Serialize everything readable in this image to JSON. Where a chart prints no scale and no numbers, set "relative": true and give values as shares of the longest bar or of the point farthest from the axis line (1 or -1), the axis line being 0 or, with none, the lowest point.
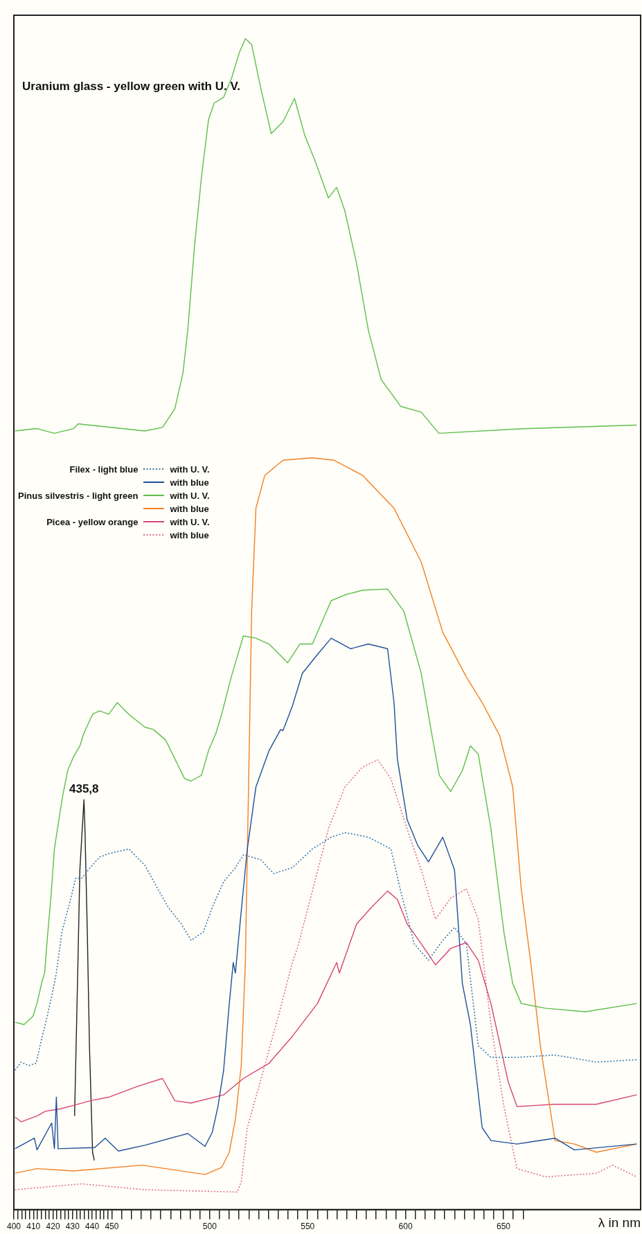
{
  "chart_data": {
    "type": "line",
    "relative": true,
    "xlabel": "λ in nm",
    "xlim": [
      400,
      720
    ],
    "xticks": [
      400,
      {
        "value": 402,
        "label": null
      },
      {
        "value": 404,
        "label": null
      },
      {
        "value": 406,
        "label": null
      },
      {
        "value": 408,
        "label": null
      },
      410,
      {
        "value": 412,
        "label": null
      },
      {
        "value": 414,
        "label": null
      },
      {
        "value": 416,
        "label": null
      },
      {
        "value": 418,
        "label": null
      },
      420,
      {
        "value": 422,
        "label": null
      },
      {
        "value": 424,
        "label": null
      },
      {
        "value": 426,
        "label": null
      },
      {
        "value": 428,
        "label": null
      },
      430,
      {
        "value": 432,
        "label": null
      },
      {
        "value": 434,
        "label": null
      },
      {
        "value": 436,
        "label": null
      },
      {
        "value": 438,
        "label": null
      },
      440,
      {
        "value": 442,
        "label": null
      },
      {
        "value": 444,
        "label": null
      },
      {
        "value": 446,
        "label": null
      },
      {
        "value": 448,
        "label": null
      },
      450,
      {
        "value": 455,
        "label": null
      },
      {
        "value": 460,
        "label": null
      },
      {
        "value": 465,
        "label": null
      },
      {
        "value": 470,
        "label": null
      },
      {
        "value": 475,
        "label": null
      },
      {
        "value": 480,
        "label": null
      },
      {
        "value": 485,
        "label": null
      },
      {
        "value": 490,
        "label": null
      },
      {
        "value": 495,
        "label": null
      },
      500,
      {
        "value": 505,
        "label": null
      },
      {
        "value": 510,
        "label": null
      },
      {
        "value": 515,
        "label": null
      },
      {
        "value": 520,
        "label": null
      },
      {
        "value": 525,
        "label": null
      },
      {
        "value": 530,
        "label": null
      },
      {
        "value": 535,
        "label": null
      },
      {
        "value": 540,
        "label": null
      },
      {
        "value": 545,
        "label": null
      },
      550,
      {
        "value": 555,
        "label": null
      },
      {
        "value": 560,
        "label": null
      },
      {
        "value": 565,
        "label": null
      },
      {
        "value": 570,
        "label": null
      },
      {
        "value": 575,
        "label": null
      },
      {
        "value": 580,
        "label": null
      },
      {
        "value": 585,
        "label": null
      },
      {
        "value": 590,
        "label": null
      },
      {
        "value": 595,
        "label": null
      },
      600,
      {
        "value": 605,
        "label": null
      },
      {
        "value": 610,
        "label": null
      },
      {
        "value": 615,
        "label": null
      },
      {
        "value": 620,
        "label": null
      },
      {
        "value": 625,
        "label": null
      },
      {
        "value": 630,
        "label": null
      },
      {
        "value": 635,
        "label": null
      },
      {
        "value": 640,
        "label": null
      },
      {
        "value": 645,
        "label": null
      },
      650,
      {
        "value": 655,
        "label": null
      },
      {
        "value": 660,
        "label": null
      }
    ],
    "legend": "top left",
    "marker": "none",
    "annotations": [
      "Uranium glass - yellow green with U. V.",
      "Filex - light blue",
      "Pinus silvestris - light green",
      "Picea - yellow orange",
      {
        "text": "435,8",
        "x": 435.8,
        "y": 0.35
      }
    ],
    "series": [
      {
        "color": "#5cbf4a",
        "line_style": "solid",
        "x": [
          400.6,
          411.8,
          420.7,
          430.5,
          432.8,
          466.9,
          475.9,
          482.2,
          486.3,
          488.8,
          492.2,
          495.8,
          499.4,
          502.3,
          507.1,
          511.1,
          515.1,
          518.2,
          521.4,
          525.9,
          531.4,
          537.4,
          543.3,
          548.6,
          553.7,
          560.6,
          564.8,
          569,
          575,
          581,
          587.5,
          597.5,
          608,
          617,
          661.4,
          718
        ],
        "values": [
          0.665,
          0.667,
          0.663,
          0.667,
          0.671,
          0.665,
          0.668,
          0.684,
          0.714,
          0.751,
          0.822,
          0.882,
          0.931,
          0.945,
          0.95,
          0.966,
          0.988,
          1.0,
          0.995,
          0.959,
          0.919,
          0.929,
          0.949,
          0.917,
          0.896,
          0.864,
          0.873,
          0.853,
          0.808,
          0.751,
          0.709,
          0.686,
          0.681,
          0.663,
          0.667,
          0.67
        ]
      },
      {
        "name": "with U. V.",
        "color": "#3a78b5",
        "line_style": "dotted",
        "x": [
          400.6,
          403.7,
          407.6,
          411.4,
          413.5,
          417,
          419.8,
          421.7,
          424.5,
          428.5,
          431.6,
          434.7,
          438,
          443.7,
          448.4,
          458.7,
          466.9,
          472.8,
          478.9,
          485.5,
          490.5,
          496.7,
          501.3,
          507.1,
          513.1,
          517.2,
          525.9,
          532.7,
          542.2,
          552.4,
          562,
          569,
          581,
          592.5,
          597.5,
          604.4,
          611.7,
          619,
          625,
          631,
          637.1,
          643.6,
          656.9,
          676.3,
          697.4,
          718
        ],
        "values": [
          0.119,
          0.126,
          0.123,
          0.125,
          0.141,
          0.165,
          0.186,
          0.202,
          0.237,
          0.262,
          0.283,
          0.283,
          0.29,
          0.301,
          0.304,
          0.308,
          0.294,
          0.276,
          0.258,
          0.244,
          0.23,
          0.237,
          0.258,
          0.28,
          0.292,
          0.303,
          0.299,
          0.287,
          0.292,
          0.308,
          0.318,
          0.322,
          0.318,
          0.308,
          0.272,
          0.227,
          0.213,
          0.23,
          0.241,
          0.227,
          0.14,
          0.13,
          0.13,
          0.132,
          0.126,
          0.128
        ]
      },
      {
        "name": "with blue",
        "color": "#1f4f9a",
        "line_style": "solid",
        "x": [
          400.6,
          410.5,
          411.8,
          419.3,
          420.7,
          421.7,
          422.6,
          441.3,
          446.6,
          453.4,
          466.9,
          488.8,
          497.6,
          501.3,
          504.2,
          507.1,
          510,
          512,
          513.1,
          516.1,
          519.2,
          523.6,
          530.3,
          536.2,
          537.4,
          542.2,
          547.3,
          555,
          562,
          572,
          581,
          590.8,
          594.1,
          595.8,
          600.8,
          606.2,
          611.7,
          619,
          625,
          629,
          633.1,
          639.1,
          643.6,
          656.9,
          676.3,
          686.2,
          718
        ],
        "values": [
          0.052,
          0.061,
          0.051,
          0.074,
          0.052,
          0.096,
          0.052,
          0.053,
          0.061,
          0.05,
          0.055,
          0.065,
          0.054,
          0.066,
          0.088,
          0.119,
          0.176,
          0.211,
          0.202,
          0.255,
          0.308,
          0.361,
          0.392,
          0.41,
          0.409,
          0.43,
          0.458,
          0.474,
          0.488,
          0.479,
          0.483,
          0.479,
          0.433,
          0.385,
          0.333,
          0.311,
          0.297,
          0.318,
          0.29,
          0.193,
          0.158,
          0.07,
          0.059,
          0.056,
          0.061,
          0.051,
          0.056
        ]
      },
      {
        "name": "with U. V.",
        "color": "#5cbf4a",
        "line_style": "solid",
        "x": [
          400.6,
          405.2,
          409.7,
          411.8,
          414.4,
          415.7,
          417,
          418.9,
          420.7,
          422.6,
          425,
          427.5,
          430.5,
          433.7,
          435.8,
          440.2,
          443.7,
          448.4,
          452.8,
          458.7,
          466.9,
          471.3,
          477.5,
          482.2,
          487.2,
          490.5,
          495.8,
          499.4,
          503.2,
          506.1,
          511,
          517.2,
          523.6,
          530.3,
          539.8,
          546,
          552.4,
          562,
          569,
          578.1,
          590.8,
          599.1,
          608,
          613.5,
          617.2,
          623,
          629,
          633.1,
          637.1,
          643.6,
          650.2,
          654.7,
          659.1,
          671.3,
          691.8,
          718
        ],
        "values": [
          0.16,
          0.158,
          0.165,
          0.176,
          0.195,
          0.202,
          0.23,
          0.266,
          0.308,
          0.329,
          0.354,
          0.375,
          0.387,
          0.396,
          0.407,
          0.423,
          0.426,
          0.423,
          0.433,
          0.423,
          0.412,
          0.41,
          0.401,
          0.385,
          0.368,
          0.366,
          0.371,
          0.392,
          0.407,
          0.423,
          0.455,
          0.49,
          0.488,
          0.483,
          0.467,
          0.483,
          0.483,
          0.52,
          0.525,
          0.529,
          0.53,
          0.511,
          0.458,
          0.405,
          0.371,
          0.357,
          0.375,
          0.396,
          0.389,
          0.325,
          0.237,
          0.193,
          0.176,
          0.172,
          0.169,
          0.176
        ]
      },
      {
        "name": "with blue",
        "color": "#f47f20",
        "line_style": "solid",
        "x": [
          400.6,
          411.8,
          430.5,
          465.5,
          497.6,
          506.1,
          510,
          513.1,
          516.1,
          518.2,
          520.3,
          521.4,
          523.6,
          528.1,
          537.4,
          552.4,
          563.4,
          578.1,
          594.1,
          608,
          619,
          631,
          639.1,
          648,
          654.7,
          659.1,
          663.9,
          668.8,
          676.3,
          686.2,
          697.4,
          718
        ],
        "values": [
          0.031,
          0.035,
          0.033,
          0.038,
          0.03,
          0.036,
          0.049,
          0.077,
          0.123,
          0.211,
          0.405,
          0.511,
          0.599,
          0.627,
          0.64,
          0.642,
          0.64,
          0.627,
          0.599,
          0.553,
          0.493,
          0.455,
          0.433,
          0.405,
          0.361,
          0.273,
          0.211,
          0.14,
          0.059,
          0.056,
          0.049,
          0.056
        ]
      },
      {
        "name": "with U. V.",
        "color": "#d6437a",
        "line_style": "solid",
        "x": [
          400.6,
          403.7,
          411.8,
          416.1,
          423.5,
          430.5,
          439.1,
          448.4,
          462.7,
          475.9,
          482.2,
          490.5,
          507.1,
          517.2,
          530.3,
          542.2,
          555,
          564.8,
          566.2,
          575,
          582.5,
          590.8,
          595.8,
          600.8,
          608,
          615.3,
          623,
          631,
          637.1,
          643.6,
          652.4,
          656.9,
          676.3,
          697.4,
          718
        ],
        "values": [
          0.079,
          0.075,
          0.08,
          0.084,
          0.086,
          0.089,
          0.093,
          0.096,
          0.105,
          0.112,
          0.093,
          0.091,
          0.098,
          0.112,
          0.125,
          0.148,
          0.176,
          0.211,
          0.202,
          0.244,
          0.258,
          0.272,
          0.265,
          0.244,
          0.227,
          0.209,
          0.223,
          0.228,
          0.213,
          0.176,
          0.109,
          0.088,
          0.09,
          0.09,
          0.098
        ]
      },
      {
        "name": "with blue",
        "color": "#e06a9a",
        "line_style": "dotted",
        "x": [
          400.6,
          420.7,
          434.7,
          466.9,
          514.1,
          516.1,
          519.2,
          528.1,
          535,
          542.2,
          544.7,
          552.4,
          560.6,
          569,
          578.1,
          585.8,
          592.5,
          600.8,
          608,
          615.3,
          623,
          631,
          637.1,
          643.6,
          650.2,
          656.9,
          671.3,
          697.4,
          705.7,
          718
        ],
        "values": [
          0.017,
          0.02,
          0.022,
          0.017,
          0.015,
          0.024,
          0.07,
          0.123,
          0.165,
          0.211,
          0.223,
          0.272,
          0.325,
          0.361,
          0.378,
          0.384,
          0.368,
          0.325,
          0.29,
          0.248,
          0.266,
          0.274,
          0.248,
          0.158,
          0.088,
          0.035,
          0.028,
          0.031,
          0.038,
          0.028
        ]
      },
      {
        "color": "#222222",
        "line_style": "solid",
        "x": [
          431.0,
          432.6,
          433.7,
          435.8,
          436.3,
          437.5,
          438.6,
          440.2,
          441.1
        ],
        "values": [
          0.08,
          0.202,
          0.29,
          0.35,
          0.325,
          0.237,
          0.14,
          0.049,
          0.042
        ]
      }
    ]
  }
}
